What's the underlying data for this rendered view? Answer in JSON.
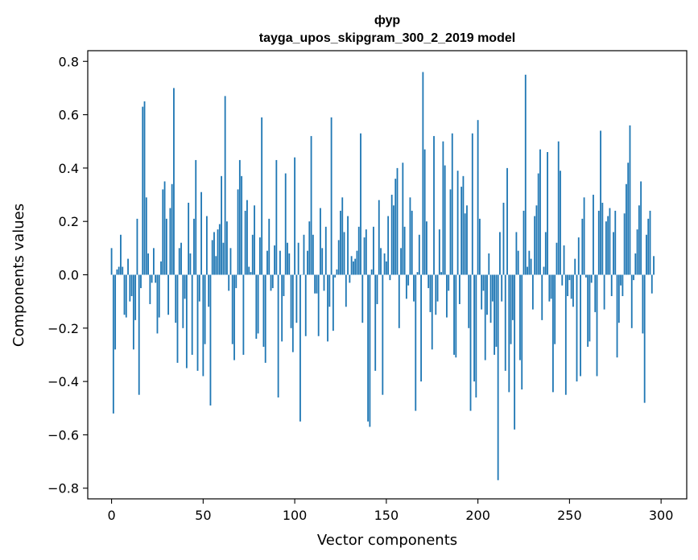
{
  "chart_data": {
    "type": "bar",
    "title": "фур",
    "subtitle": "tayga_upos_skipgram_300_2_2019 model",
    "xlabel": "Vector components",
    "ylabel": "Components values",
    "xlim": [
      -13,
      314
    ],
    "ylim": [
      -0.84,
      0.84
    ],
    "xticks": [
      0,
      50,
      100,
      150,
      200,
      250,
      300
    ],
    "yticks": [
      -0.8,
      -0.6,
      -0.4,
      -0.2,
      0.0,
      0.2,
      0.4,
      0.6,
      0.8
    ],
    "xtick_labels": [
      "0",
      "50",
      "100",
      "150",
      "200",
      "250",
      "300"
    ],
    "ytick_labels": [
      "−0.8",
      "−0.6",
      "−0.4",
      "−0.2",
      "0.0",
      "0.2",
      "0.4",
      "0.6",
      "0.8"
    ],
    "bar_color": "#1f77b4",
    "values": [
      0.1,
      -0.52,
      -0.28,
      0.02,
      0.03,
      0.15,
      0.03,
      -0.15,
      -0.16,
      0.06,
      -0.1,
      -0.08,
      -0.28,
      -0.17,
      0.21,
      -0.45,
      -0.05,
      0.63,
      0.65,
      0.29,
      0.08,
      -0.11,
      -0.03,
      0.1,
      -0.03,
      -0.22,
      -0.16,
      0.05,
      0.32,
      0.35,
      0.21,
      -0.15,
      0.25,
      0.34,
      0.7,
      -0.18,
      -0.33,
      0.1,
      0.12,
      -0.2,
      -0.09,
      -0.35,
      0.27,
      0.08,
      -0.3,
      0.21,
      0.43,
      -0.36,
      -0.1,
      0.31,
      -0.38,
      -0.26,
      0.22,
      -0.12,
      -0.49,
      0.13,
      0.16,
      0.07,
      0.17,
      0.19,
      0.37,
      0.12,
      0.67,
      0.2,
      -0.06,
      0.1,
      -0.26,
      -0.32,
      -0.05,
      0.32,
      0.43,
      0.37,
      -0.3,
      0.24,
      0.28,
      0.03,
      0.01,
      0.15,
      0.26,
      -0.24,
      -0.22,
      0.14,
      0.59,
      -0.27,
      -0.33,
      0.09,
      0.21,
      -0.06,
      -0.05,
      0.11,
      0.43,
      -0.46,
      0.09,
      -0.25,
      -0.08,
      0.38,
      0.12,
      0.08,
      -0.2,
      -0.29,
      0.44,
      -0.18,
      0.12,
      -0.55,
      0.0,
      0.15,
      -0.23,
      0.09,
      0.2,
      0.52,
      0.15,
      -0.07,
      -0.07,
      -0.23,
      0.25,
      0.1,
      -0.06,
      0.18,
      -0.25,
      -0.12,
      0.59,
      -0.21,
      -0.01,
      0.02,
      0.13,
      0.24,
      0.29,
      0.16,
      -0.12,
      0.22,
      -0.03,
      0.07,
      0.05,
      0.06,
      0.09,
      0.18,
      0.53,
      -0.18,
      0.14,
      0.17,
      -0.55,
      -0.57,
      0.02,
      0.18,
      -0.36,
      -0.11,
      0.28,
      0.1,
      -0.45,
      0.08,
      0.05,
      0.22,
      -0.02,
      0.3,
      0.26,
      0.36,
      0.4,
      -0.2,
      0.1,
      0.42,
      0.18,
      -0.09,
      -0.04,
      0.29,
      0.24,
      -0.1,
      -0.51,
      0.01,
      0.15,
      -0.4,
      0.76,
      0.47,
      0.2,
      -0.05,
      -0.14,
      -0.28,
      0.52,
      -0.15,
      -0.1,
      0.17,
      0.01,
      0.5,
      0.41,
      -0.16,
      -0.06,
      0.32,
      0.53,
      -0.3,
      -0.31,
      0.39,
      -0.11,
      0.33,
      0.37,
      0.23,
      0.26,
      -0.2,
      -0.51,
      0.53,
      -0.4,
      -0.46,
      0.58,
      0.21,
      -0.13,
      -0.06,
      -0.32,
      -0.15,
      0.08,
      -0.18,
      -0.1,
      -0.3,
      -0.27,
      -0.77,
      0.16,
      -0.1,
      0.27,
      -0.36,
      0.4,
      -0.44,
      -0.26,
      -0.17,
      -0.58,
      0.16,
      0.09,
      -0.32,
      -0.43,
      0.24,
      0.75,
      0.03,
      0.09,
      0.06,
      -0.13,
      0.22,
      0.26,
      0.38,
      0.47,
      -0.17,
      0.03,
      0.16,
      0.46,
      -0.1,
      -0.09,
      -0.44,
      -0.26,
      0.12,
      0.5,
      0.39,
      -0.04,
      0.11,
      -0.45,
      -0.08,
      -0.02,
      -0.09,
      -0.12,
      0.06,
      -0.4,
      0.14,
      -0.38,
      0.21,
      0.29,
      -0.01,
      -0.27,
      -0.25,
      -0.03,
      0.3,
      -0.14,
      -0.38,
      0.24,
      0.54,
      0.27,
      -0.13,
      0.2,
      0.22,
      0.25,
      -0.08,
      0.16,
      0.24,
      -0.31,
      -0.18,
      -0.04,
      -0.08,
      0.23,
      0.34,
      0.42,
      0.56,
      -0.2,
      -0.02,
      0.08,
      0.17,
      0.26,
      0.35,
      -0.22,
      -0.48,
      0.15,
      0.21,
      0.24,
      -0.07,
      0.07
    ]
  }
}
